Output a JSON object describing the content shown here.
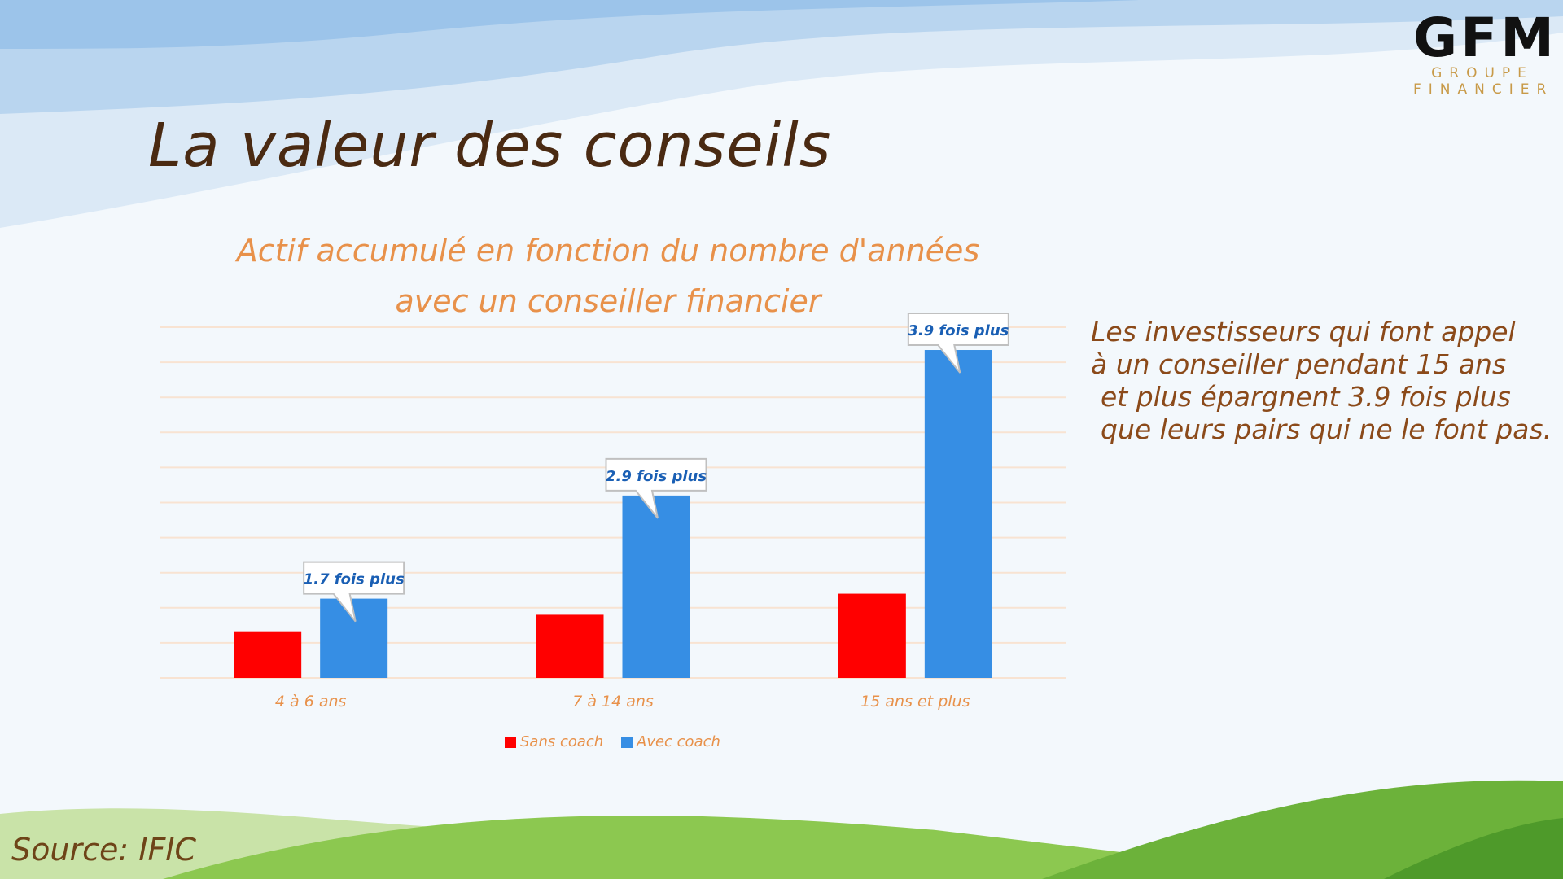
{
  "title": "La valeur des conseils",
  "logo": {
    "mark": "GFM",
    "line1": "GROUPE",
    "line2": "FINANCIER"
  },
  "side_text": [
    "Les investisseurs qui font appel",
    "à un conseiller pendant 15 ans",
    "et plus épargnent 3.9 fois plus",
    "que leurs pairs qui ne le font pas."
  ],
  "source": "Source: IFIC",
  "chart_data": {
    "type": "bar",
    "title_lines": [
      "Actif accumulé en fonction du nombre d'années",
      "avec un conseiller financier"
    ],
    "categories": [
      "4 à 6 ans",
      "7 à 14 ans",
      "15 ans et plus"
    ],
    "series": [
      {
        "name": "Sans coach",
        "color": "#ff0000",
        "values": [
          1.33,
          1.8,
          2.4
        ]
      },
      {
        "name": "Avec coach",
        "color": "#368ee4",
        "values": [
          2.26,
          5.2,
          9.35
        ]
      }
    ],
    "annotations": [
      "1.7 fois plus",
      "2.9 fois plus",
      "3.9 fois plus"
    ],
    "ylim": [
      0,
      10
    ],
    "grid": true,
    "legend": "bottom",
    "xlabel": "",
    "ylabel": ""
  }
}
